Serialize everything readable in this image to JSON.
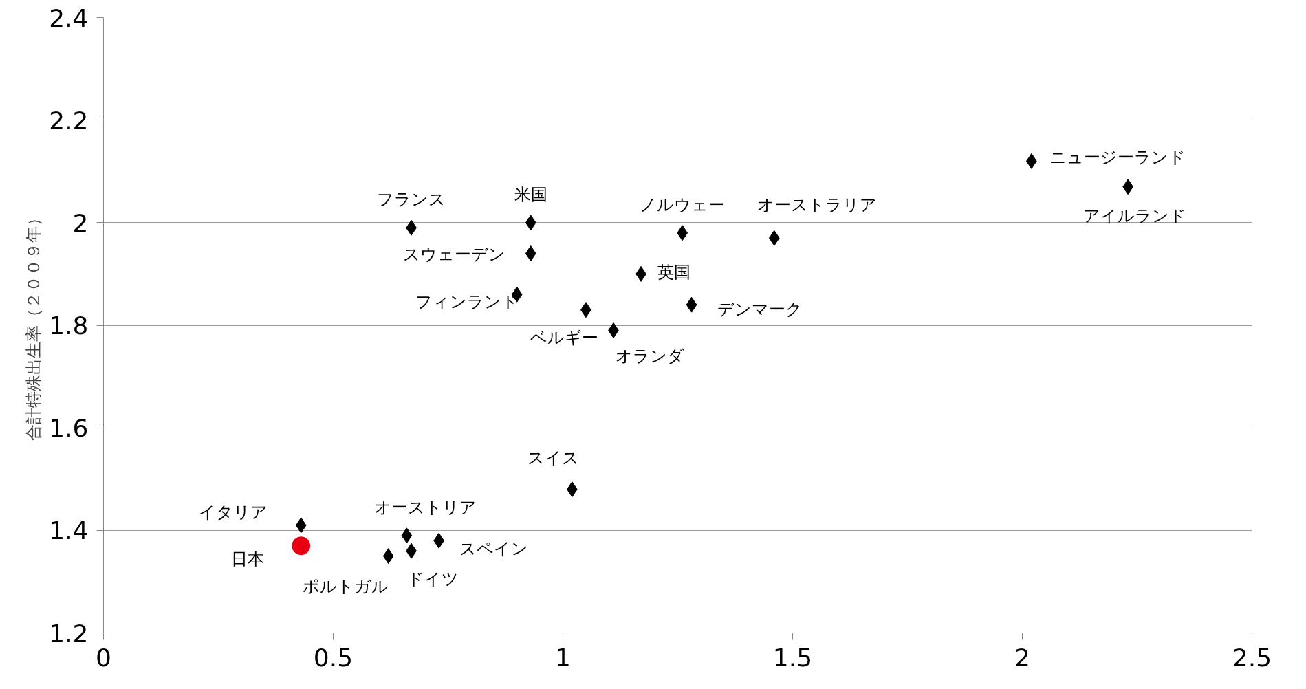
{
  "chart_data": {
    "type": "scatter",
    "ylabel": "合計特殊出生率（２００９年）",
    "xlim": [
      0,
      2.5
    ],
    "xticks": [
      0,
      0.5,
      1,
      1.5,
      2,
      2.5
    ],
    "ylim": [
      1.2,
      2.4
    ],
    "yticks": [
      1.2,
      1.4,
      1.6,
      1.8,
      2,
      2.2,
      2.4
    ],
    "grid": "y",
    "series": [
      {
        "color": "#000000",
        "marker": "diamond",
        "x": [
          2.02,
          2.23,
          0.67,
          0.93,
          0.93,
          1.26,
          1.46,
          1.17,
          0.9,
          1.05,
          1.11,
          1.28,
          1.02,
          0.43,
          0.66,
          0.73,
          0.67,
          0.62
        ],
        "values": [
          2.12,
          2.07,
          1.99,
          2.0,
          1.94,
          1.98,
          1.97,
          1.9,
          1.86,
          1.83,
          1.79,
          1.84,
          1.48,
          1.41,
          1.39,
          1.38,
          1.36,
          1.35
        ]
      },
      {
        "color": "#e60012",
        "marker": "circle",
        "x": [
          0.43
        ],
        "values": [
          1.37
        ]
      }
    ],
    "annotations": [
      {
        "text": "ニュージーランド",
        "x": 2.02,
        "y": 2.12
      },
      {
        "text": "アイルランド",
        "x": 2.23,
        "y": 2.07
      },
      {
        "text": "フランス",
        "x": 0.67,
        "y": 1.99
      },
      {
        "text": "米国",
        "x": 0.93,
        "y": 2.0
      },
      {
        "text": "スウェーデン",
        "x": 0.93,
        "y": 1.94
      },
      {
        "text": "ノルウェー",
        "x": 1.26,
        "y": 1.98
      },
      {
        "text": "オーストラリア",
        "x": 1.46,
        "y": 1.97
      },
      {
        "text": "英国",
        "x": 1.17,
        "y": 1.9
      },
      {
        "text": "フィンランド",
        "x": 0.9,
        "y": 1.86
      },
      {
        "text": "ベルギー",
        "x": 1.05,
        "y": 1.83
      },
      {
        "text": "オランダ",
        "x": 1.11,
        "y": 1.79
      },
      {
        "text": "デンマーク",
        "x": 1.28,
        "y": 1.84
      },
      {
        "text": "スイス",
        "x": 1.02,
        "y": 1.48
      },
      {
        "text": "イタリア",
        "x": 0.43,
        "y": 1.41
      },
      {
        "text": "日本",
        "x": 0.43,
        "y": 1.37
      },
      {
        "text": "オーストリア",
        "x": 0.66,
        "y": 1.39
      },
      {
        "text": "スペイン",
        "x": 0.73,
        "y": 1.38
      },
      {
        "text": "ドイツ",
        "x": 0.67,
        "y": 1.36
      },
      {
        "text": "ポルトガル",
        "x": 0.62,
        "y": 1.35
      }
    ]
  }
}
